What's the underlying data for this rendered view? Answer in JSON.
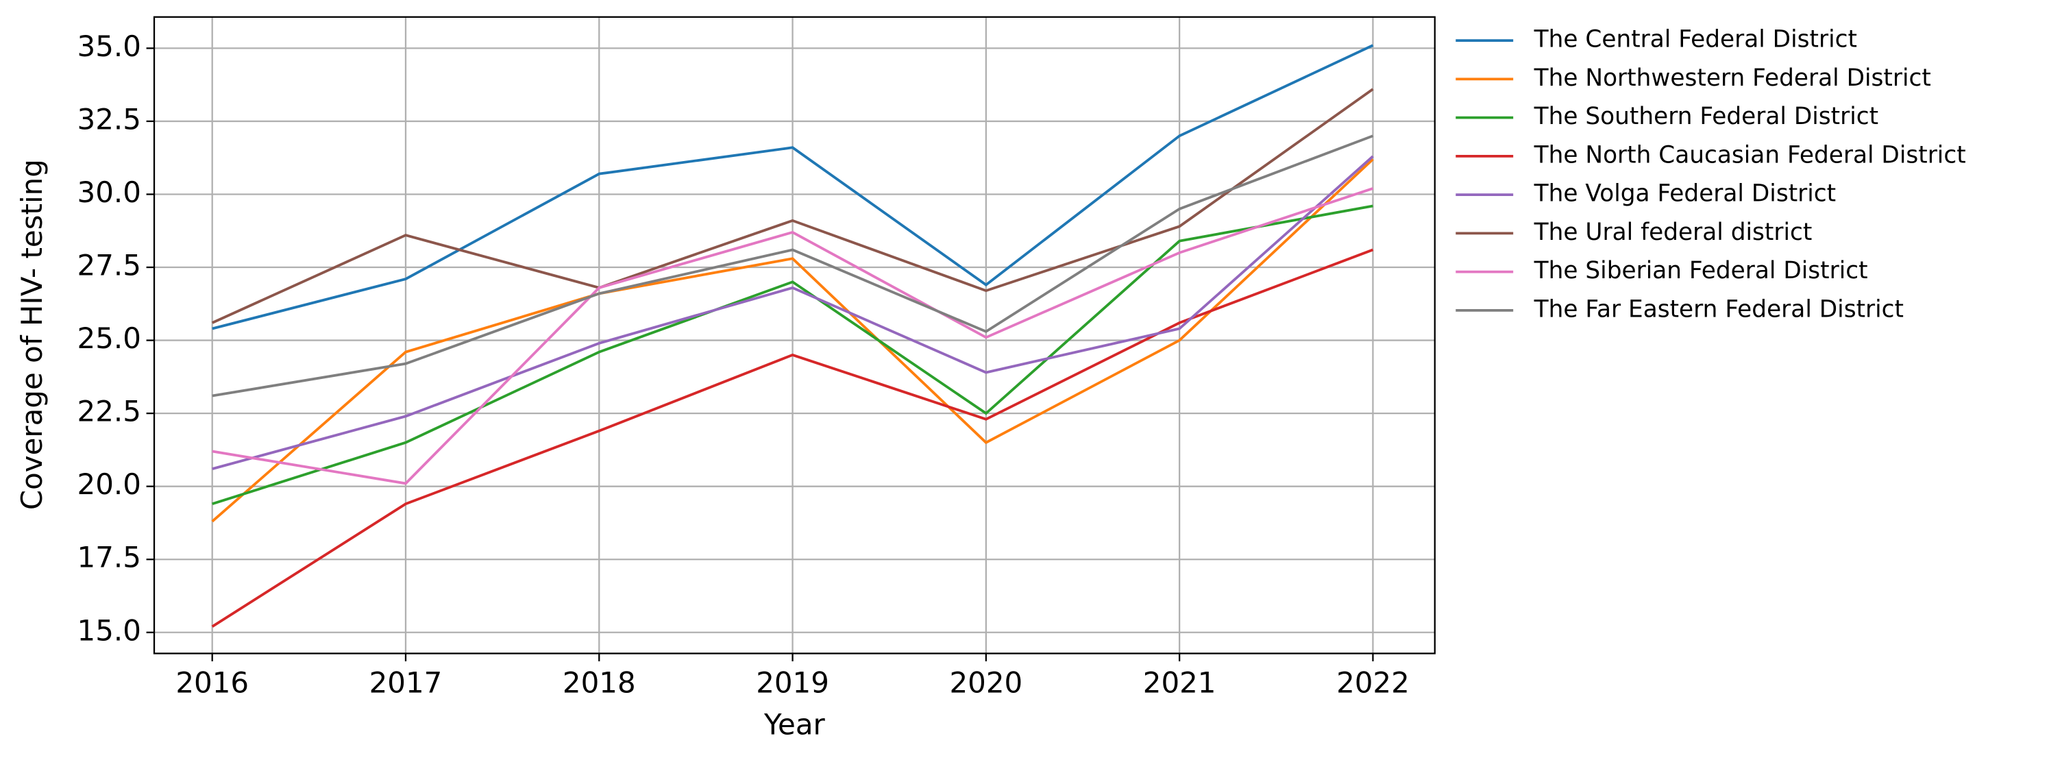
{
  "chart_data": {
    "type": "line",
    "x_label": "Year",
    "y_label": "Coverage of HIV- testing",
    "x": [
      2016,
      2017,
      2018,
      2019,
      2020,
      2021,
      2022
    ],
    "xlim": [
      2015.7,
      2022.32
    ],
    "xticks": [
      2016,
      2017,
      2018,
      2019,
      2020,
      2021,
      2022
    ],
    "ylim": [
      14.28,
      36.07
    ],
    "yticks": [
      {
        "value": 15,
        "label": "15.0"
      },
      {
        "value": 17.5,
        "label": "17.5"
      },
      {
        "value": 20,
        "label": "20.0"
      },
      {
        "value": 22.5,
        "label": "22.5"
      },
      {
        "value": 25,
        "label": "25.0"
      },
      {
        "value": 27.5,
        "label": "27.5"
      },
      {
        "value": 30,
        "label": "30.0"
      },
      {
        "value": 32.5,
        "label": "32.5"
      },
      {
        "value": 35,
        "label": "35.0"
      }
    ],
    "grid": true,
    "legend": "outside right",
    "series": [
      {
        "name": "The Central Federal District",
        "color": "#1f77b4",
        "values": [
          25.4,
          27.1,
          30.7,
          31.6,
          26.9,
          32.0,
          35.1
        ]
      },
      {
        "name": "The Northwestern Federal District",
        "color": "#ff7f0e",
        "values": [
          18.8,
          24.6,
          26.6,
          27.8,
          21.5,
          25.0,
          31.2
        ]
      },
      {
        "name": "The Southern Federal District",
        "color": "#2ca02c",
        "values": [
          19.4,
          21.5,
          24.6,
          27.0,
          22.5,
          28.4,
          29.6
        ]
      },
      {
        "name": "The North Caucasian Federal District",
        "color": "#d62728",
        "values": [
          15.2,
          19.4,
          21.9,
          24.5,
          22.3,
          25.6,
          28.1
        ]
      },
      {
        "name": "The Volga Federal District",
        "color": "#9467bd",
        "values": [
          20.6,
          22.4,
          24.9,
          26.8,
          23.9,
          25.4,
          31.3
        ]
      },
      {
        "name": "The Ural federal district",
        "color": "#8c564b",
        "values": [
          25.6,
          28.6,
          26.8,
          29.1,
          26.7,
          28.9,
          33.6
        ]
      },
      {
        "name": "The Siberian Federal District",
        "color": "#e377c2",
        "values": [
          21.2,
          20.1,
          26.8,
          28.7,
          25.1,
          28.0,
          30.2
        ]
      },
      {
        "name": "The Far Eastern Federal District",
        "color": "#7f7f7f",
        "values": [
          23.1,
          24.2,
          26.6,
          28.1,
          25.3,
          29.5,
          32.0
        ]
      }
    ]
  }
}
